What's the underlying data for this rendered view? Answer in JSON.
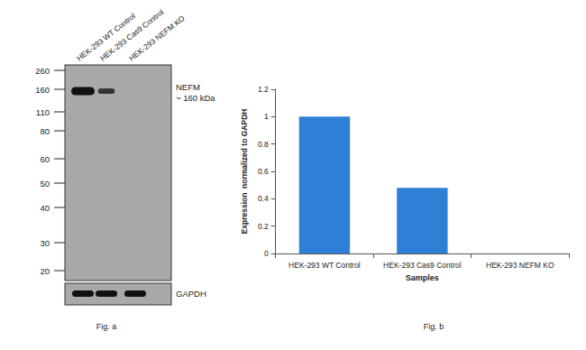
{
  "chart_data": {
    "type": "bar",
    "x_label": "Samples",
    "y_label": "Expression  normalized to GAPDH",
    "categories": [
      "HEK-293 WT Control",
      "HEK-293 Cas9 Control",
      "HEK-293 NEFM KO"
    ],
    "values": [
      1,
      0.48,
      0
    ],
    "color": "#2f7fd6",
    "ylim": [
      0,
      1.2
    ],
    "yticks": [
      0,
      0.2,
      0.4,
      0.6,
      0.8,
      1,
      1.2
    ],
    "grid": false
  },
  "blot": {
    "lanes": [
      "HEK-293 WT Control",
      "HEK-293 Cas9 Control",
      "HEK-293 NEFM KO"
    ],
    "markers": [
      260,
      160,
      110,
      80,
      60,
      50,
      40,
      30,
      20
    ],
    "target_label": "NEFM",
    "target_size": "~ 160 kDa",
    "loading_control": "GAPDH"
  },
  "panel_labels": [
    "Fig. a",
    "Fig. b"
  ]
}
